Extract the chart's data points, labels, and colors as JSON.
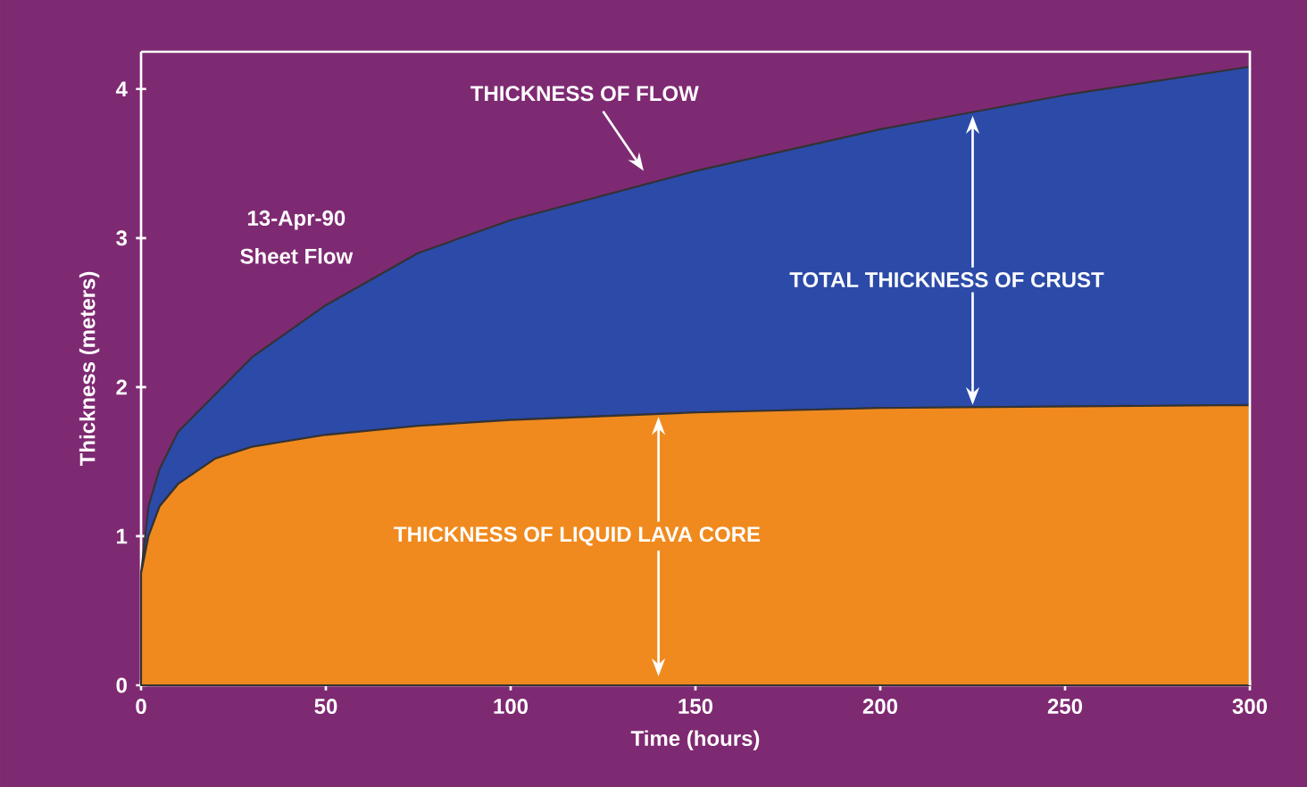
{
  "chart_data": {
    "type": "area",
    "xlabel": "Time (hours)",
    "ylabel": "Thickness (meters)",
    "x": [
      0,
      2,
      5,
      10,
      20,
      30,
      50,
      75,
      100,
      150,
      200,
      250,
      300
    ],
    "series": [
      {
        "color": "#f08a1e",
        "values": [
          0.75,
          1.0,
          1.2,
          1.35,
          1.52,
          1.6,
          1.68,
          1.74,
          1.78,
          1.83,
          1.86,
          1.87,
          1.88
        ]
      },
      {
        "color": "#2c4aa8",
        "values": [
          0,
          0.2,
          0.25,
          0.35,
          0.43,
          0.6,
          0.87,
          1.16,
          1.34,
          1.62,
          1.87,
          2.09,
          2.27
        ]
      }
    ],
    "stacked": true,
    "annotations": [
      "THICKNESS OF FLOW",
      "13-Apr-90",
      "Sheet Flow",
      "TOTAL THICKNESS OF CRUST",
      "THICKNESS OF LIQUID LAVA CORE"
    ],
    "xlim": [
      0,
      300
    ],
    "ylim": [
      0,
      4.25
    ],
    "xticks": [
      0,
      50,
      100,
      150,
      200,
      250,
      300
    ],
    "yticks": [
      0,
      1,
      2,
      3,
      4
    ],
    "grid": false
  }
}
